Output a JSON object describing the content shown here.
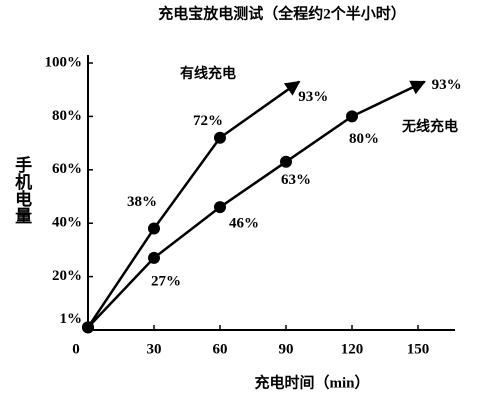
{
  "chart_data": {
    "type": "line",
    "title": "充电宝放电测试（全程约2个半小时）",
    "x_label": "充电时间（min）",
    "y_label": "手机电量",
    "xlim": [
      0,
      165
    ],
    "ylim": [
      0,
      100
    ],
    "xticks": [
      0,
      30,
      60,
      90,
      120,
      150
    ],
    "yticks": [
      {
        "value": 1,
        "label": "1%"
      },
      {
        "value": 20,
        "label": "20%"
      },
      {
        "value": 40,
        "label": "40%"
      },
      {
        "value": 60,
        "label": "60%"
      },
      {
        "value": 80,
        "label": "80%"
      },
      {
        "value": 100,
        "label": "100%"
      }
    ],
    "series": [
      {
        "name": "有线充电",
        "color": "#000000",
        "x": [
          0,
          30,
          60,
          96
        ],
        "values": [
          1,
          38,
          72,
          93
        ],
        "value_labels": [
          null,
          "38%",
          "72%",
          "93%"
        ]
      },
      {
        "name": "无线充电",
        "color": "#000000",
        "x": [
          0,
          30,
          60,
          90,
          120,
          153
        ],
        "values": [
          1,
          27,
          46,
          63,
          80,
          93
        ],
        "value_labels": [
          null,
          "27%",
          "46%",
          "63%",
          "80%",
          "93%"
        ]
      }
    ]
  }
}
